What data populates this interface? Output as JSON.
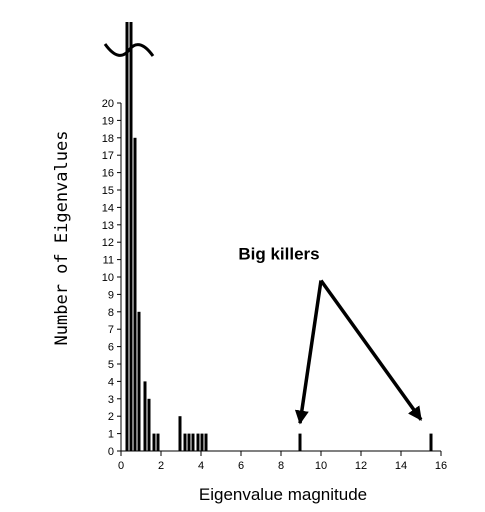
{
  "chart_data": {
    "type": "bar",
    "title": "",
    "xlabel": "Eigenvalue magnitude",
    "ylabel": "Number of Eigenvalues",
    "xlim": [
      0,
      16
    ],
    "ylim": [
      0,
      20
    ],
    "axis_break": true,
    "grid": false,
    "x_ticks": [
      0,
      2,
      4,
      6,
      8,
      10,
      12,
      14,
      16
    ],
    "y_ticks": [
      0,
      1,
      2,
      3,
      4,
      5,
      6,
      7,
      8,
      9,
      10,
      11,
      12,
      13,
      14,
      15,
      16,
      17,
      18,
      19,
      20
    ],
    "bar_color": "#000000",
    "bars": [
      {
        "x": 0.3,
        "value": 25,
        "clipped": true
      },
      {
        "x": 0.5,
        "value": 25,
        "clipped": true
      },
      {
        "x": 0.7,
        "value": 18
      },
      {
        "x": 0.9,
        "value": 8
      },
      {
        "x": 1.2,
        "value": 4
      },
      {
        "x": 1.4,
        "value": 3
      },
      {
        "x": 1.65,
        "value": 1
      },
      {
        "x": 1.85,
        "value": 1
      },
      {
        "x": 2.95,
        "value": 2
      },
      {
        "x": 3.2,
        "value": 1
      },
      {
        "x": 3.4,
        "value": 1
      },
      {
        "x": 3.6,
        "value": 1
      },
      {
        "x": 3.85,
        "value": 1
      },
      {
        "x": 4.05,
        "value": 1
      },
      {
        "x": 4.25,
        "value": 1
      },
      {
        "x": 8.95,
        "value": 1
      },
      {
        "x": 15.5,
        "value": 1
      }
    ],
    "annotation": {
      "text": "Big killers",
      "source": {
        "x": 10,
        "y": 9.8
      },
      "targets": [
        {
          "x": 8.95,
          "y": 1.6
        },
        {
          "x": 15.0,
          "y": 1.8
        }
      ]
    }
  }
}
